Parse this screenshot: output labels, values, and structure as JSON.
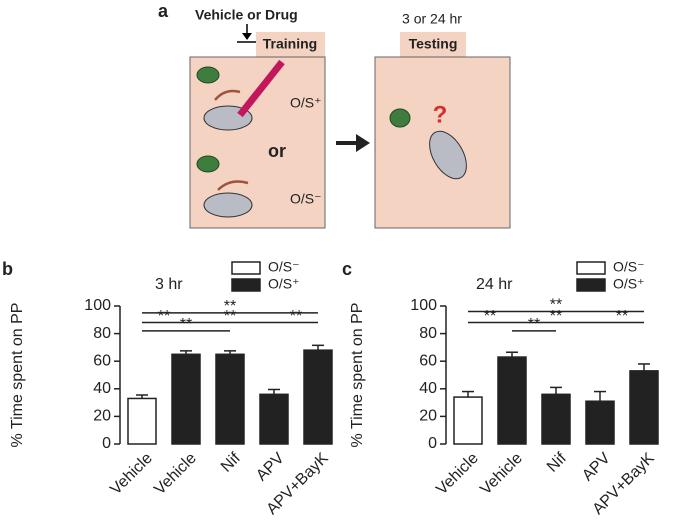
{
  "panel_a": {
    "label": "a",
    "treatment": "Vehicle or Drug",
    "delay": "3 or 24 hr",
    "training": "Training",
    "testing": "Testing",
    "pos": "O/S⁺",
    "or": "or",
    "neg": "O/S⁻",
    "question": "?"
  },
  "chart_data": [
    {
      "type": "bar",
      "panel": "b",
      "title": "3 hr",
      "ylabel": "% Time spent on PP",
      "categories": [
        "Vehicle",
        "Vehicle",
        "Nif",
        "APV",
        "APV+BayK"
      ],
      "series": [
        {
          "name": "O/S⁻",
          "color": "#ffffff",
          "values": [
            33,
            null,
            null,
            null,
            null
          ],
          "errors": [
            2.5,
            null,
            null,
            null,
            null
          ]
        },
        {
          "name": "O/S⁺",
          "color": "#222222",
          "values": [
            null,
            65,
            65,
            36,
            68
          ],
          "errors": [
            null,
            2.5,
            2.5,
            3.5,
            3.5
          ]
        }
      ],
      "ylim": [
        0,
        100
      ],
      "yticks": [
        0,
        20,
        40,
        60,
        80,
        100
      ],
      "annotations": [
        {
          "label": "**",
          "from": 0,
          "to": 4,
          "y": 95
        },
        {
          "label": "**",
          "from": 0,
          "to": 1,
          "y": 88
        },
        {
          "label": "**",
          "from": 1,
          "to": 3,
          "y": 88
        },
        {
          "label": "**",
          "from": 3,
          "to": 4,
          "y": 88
        },
        {
          "label": "**",
          "from": 0,
          "to": 2,
          "y": 82
        }
      ]
    },
    {
      "type": "bar",
      "panel": "c",
      "title": "24 hr",
      "ylabel": "% Time spent on PP",
      "categories": [
        "Vehicle",
        "Vehicle",
        "Nif",
        "APV",
        "APV+BayK"
      ],
      "series": [
        {
          "name": "O/S⁻",
          "color": "#ffffff",
          "values": [
            34,
            null,
            null,
            null,
            null
          ],
          "errors": [
            4,
            null,
            null,
            null,
            null
          ]
        },
        {
          "name": "O/S⁺",
          "color": "#222222",
          "values": [
            null,
            63,
            36,
            31,
            53
          ],
          "errors": [
            null,
            3.5,
            5,
            7,
            5
          ]
        }
      ],
      "ylim": [
        0,
        100
      ],
      "yticks": [
        0,
        20,
        40,
        60,
        80,
        100
      ],
      "annotations": [
        {
          "label": "**",
          "from": 0,
          "to": 4,
          "y": 96
        },
        {
          "label": "**",
          "from": 0,
          "to": 1,
          "y": 88
        },
        {
          "label": "**",
          "from": 1,
          "to": 3,
          "y": 88
        },
        {
          "label": "**",
          "from": 3,
          "to": 4,
          "y": 88
        },
        {
          "label": "**",
          "from": 1,
          "to": 2,
          "y": 82
        }
      ]
    }
  ]
}
